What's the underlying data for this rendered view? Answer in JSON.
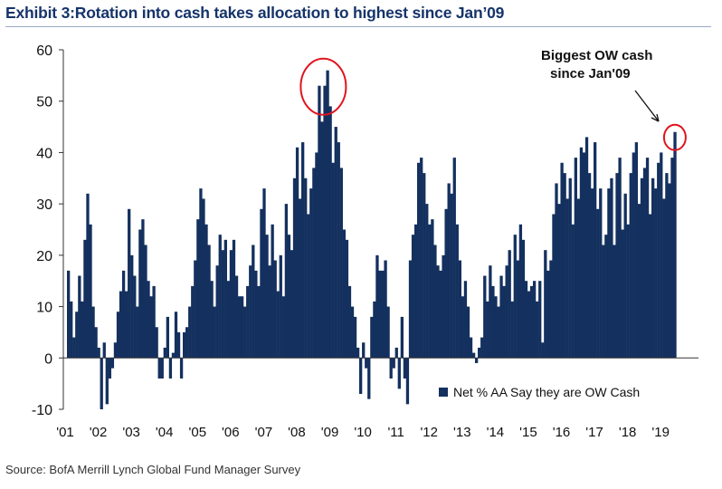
{
  "title": "Exhibit 3:Rotation into cash takes allocation to highest since Jan’09",
  "source": "Source:  BofA Merrill Lynch Global Fund Manager Survey",
  "colors": {
    "bar": "#14305e",
    "title": "#16346a",
    "highlight": "#e0141e"
  },
  "chart_data": {
    "type": "bar",
    "title": "Exhibit 3:Rotation into cash takes allocation to highest since Jan’09",
    "xlabel": "",
    "ylabel": "",
    "ylim": [
      -10,
      60
    ],
    "yticks": [
      -10,
      0,
      10,
      20,
      30,
      40,
      50,
      60
    ],
    "grid": false,
    "legend_position": "bottom-right",
    "x_start": "2001-01",
    "frequency": "monthly",
    "xtick_labels": [
      "'01",
      "'02",
      "'03",
      "'04",
      "'05",
      "'06",
      "'07",
      "'08",
      "'09",
      "'10",
      "'11",
      "'12",
      "'13",
      "'14",
      "'15",
      "'16",
      "'17",
      "'18",
      "'19"
    ],
    "series": [
      {
        "name": "Net % AA Say they are OW Cash",
        "values": [
          17,
          11,
          4,
          9,
          16,
          11,
          23,
          32,
          26,
          10,
          6,
          2,
          -10,
          3,
          -9,
          -4,
          -2,
          3,
          9,
          13,
          17,
          13,
          29,
          20,
          16,
          10,
          25,
          27,
          22,
          15,
          12,
          14,
          6,
          -4,
          -4,
          2,
          8,
          -4,
          1,
          9,
          5,
          -4,
          5,
          6,
          10,
          14,
          19,
          27,
          33,
          31,
          26,
          22,
          15,
          10,
          18,
          24,
          21,
          23,
          15,
          21,
          23,
          16,
          12,
          12,
          10,
          14,
          18,
          22,
          17,
          14,
          29,
          33,
          24,
          18,
          26,
          19,
          13,
          20,
          12,
          30,
          24,
          21,
          35,
          41,
          31,
          42,
          35,
          28,
          33,
          37,
          40,
          53,
          46,
          53,
          56,
          49,
          38,
          45,
          42,
          37,
          25,
          23,
          14,
          10,
          8,
          2,
          -7,
          3,
          -2,
          -8,
          8,
          11,
          20,
          17,
          17,
          19,
          10,
          -4,
          -2,
          2,
          -6,
          8,
          -4,
          -9,
          19,
          24,
          26,
          38,
          39,
          36,
          30,
          26,
          27,
          22,
          18,
          17,
          20,
          29,
          34,
          32,
          39,
          26,
          19,
          12,
          15,
          10,
          4,
          1,
          -1,
          2,
          4,
          16,
          11,
          18,
          14,
          12,
          10,
          16,
          14,
          18,
          21,
          11,
          24,
          19,
          26,
          23,
          15,
          13,
          14,
          15,
          11,
          15,
          3,
          21,
          17,
          19,
          28,
          34,
          30,
          38,
          36,
          31,
          35,
          26,
          39,
          31,
          41,
          40,
          43,
          36,
          33,
          42,
          29,
          33,
          22,
          24,
          33,
          35,
          22,
          36,
          39,
          25,
          32,
          26,
          36,
          40,
          42,
          30,
          35,
          37,
          39,
          28,
          35,
          33,
          38,
          40,
          31,
          36,
          34,
          39,
          44
        ]
      }
    ],
    "annotations": [
      {
        "text_line1": "Biggest OW cash",
        "text_line2": "since Jan'09",
        "points_to": "last value"
      }
    ]
  }
}
